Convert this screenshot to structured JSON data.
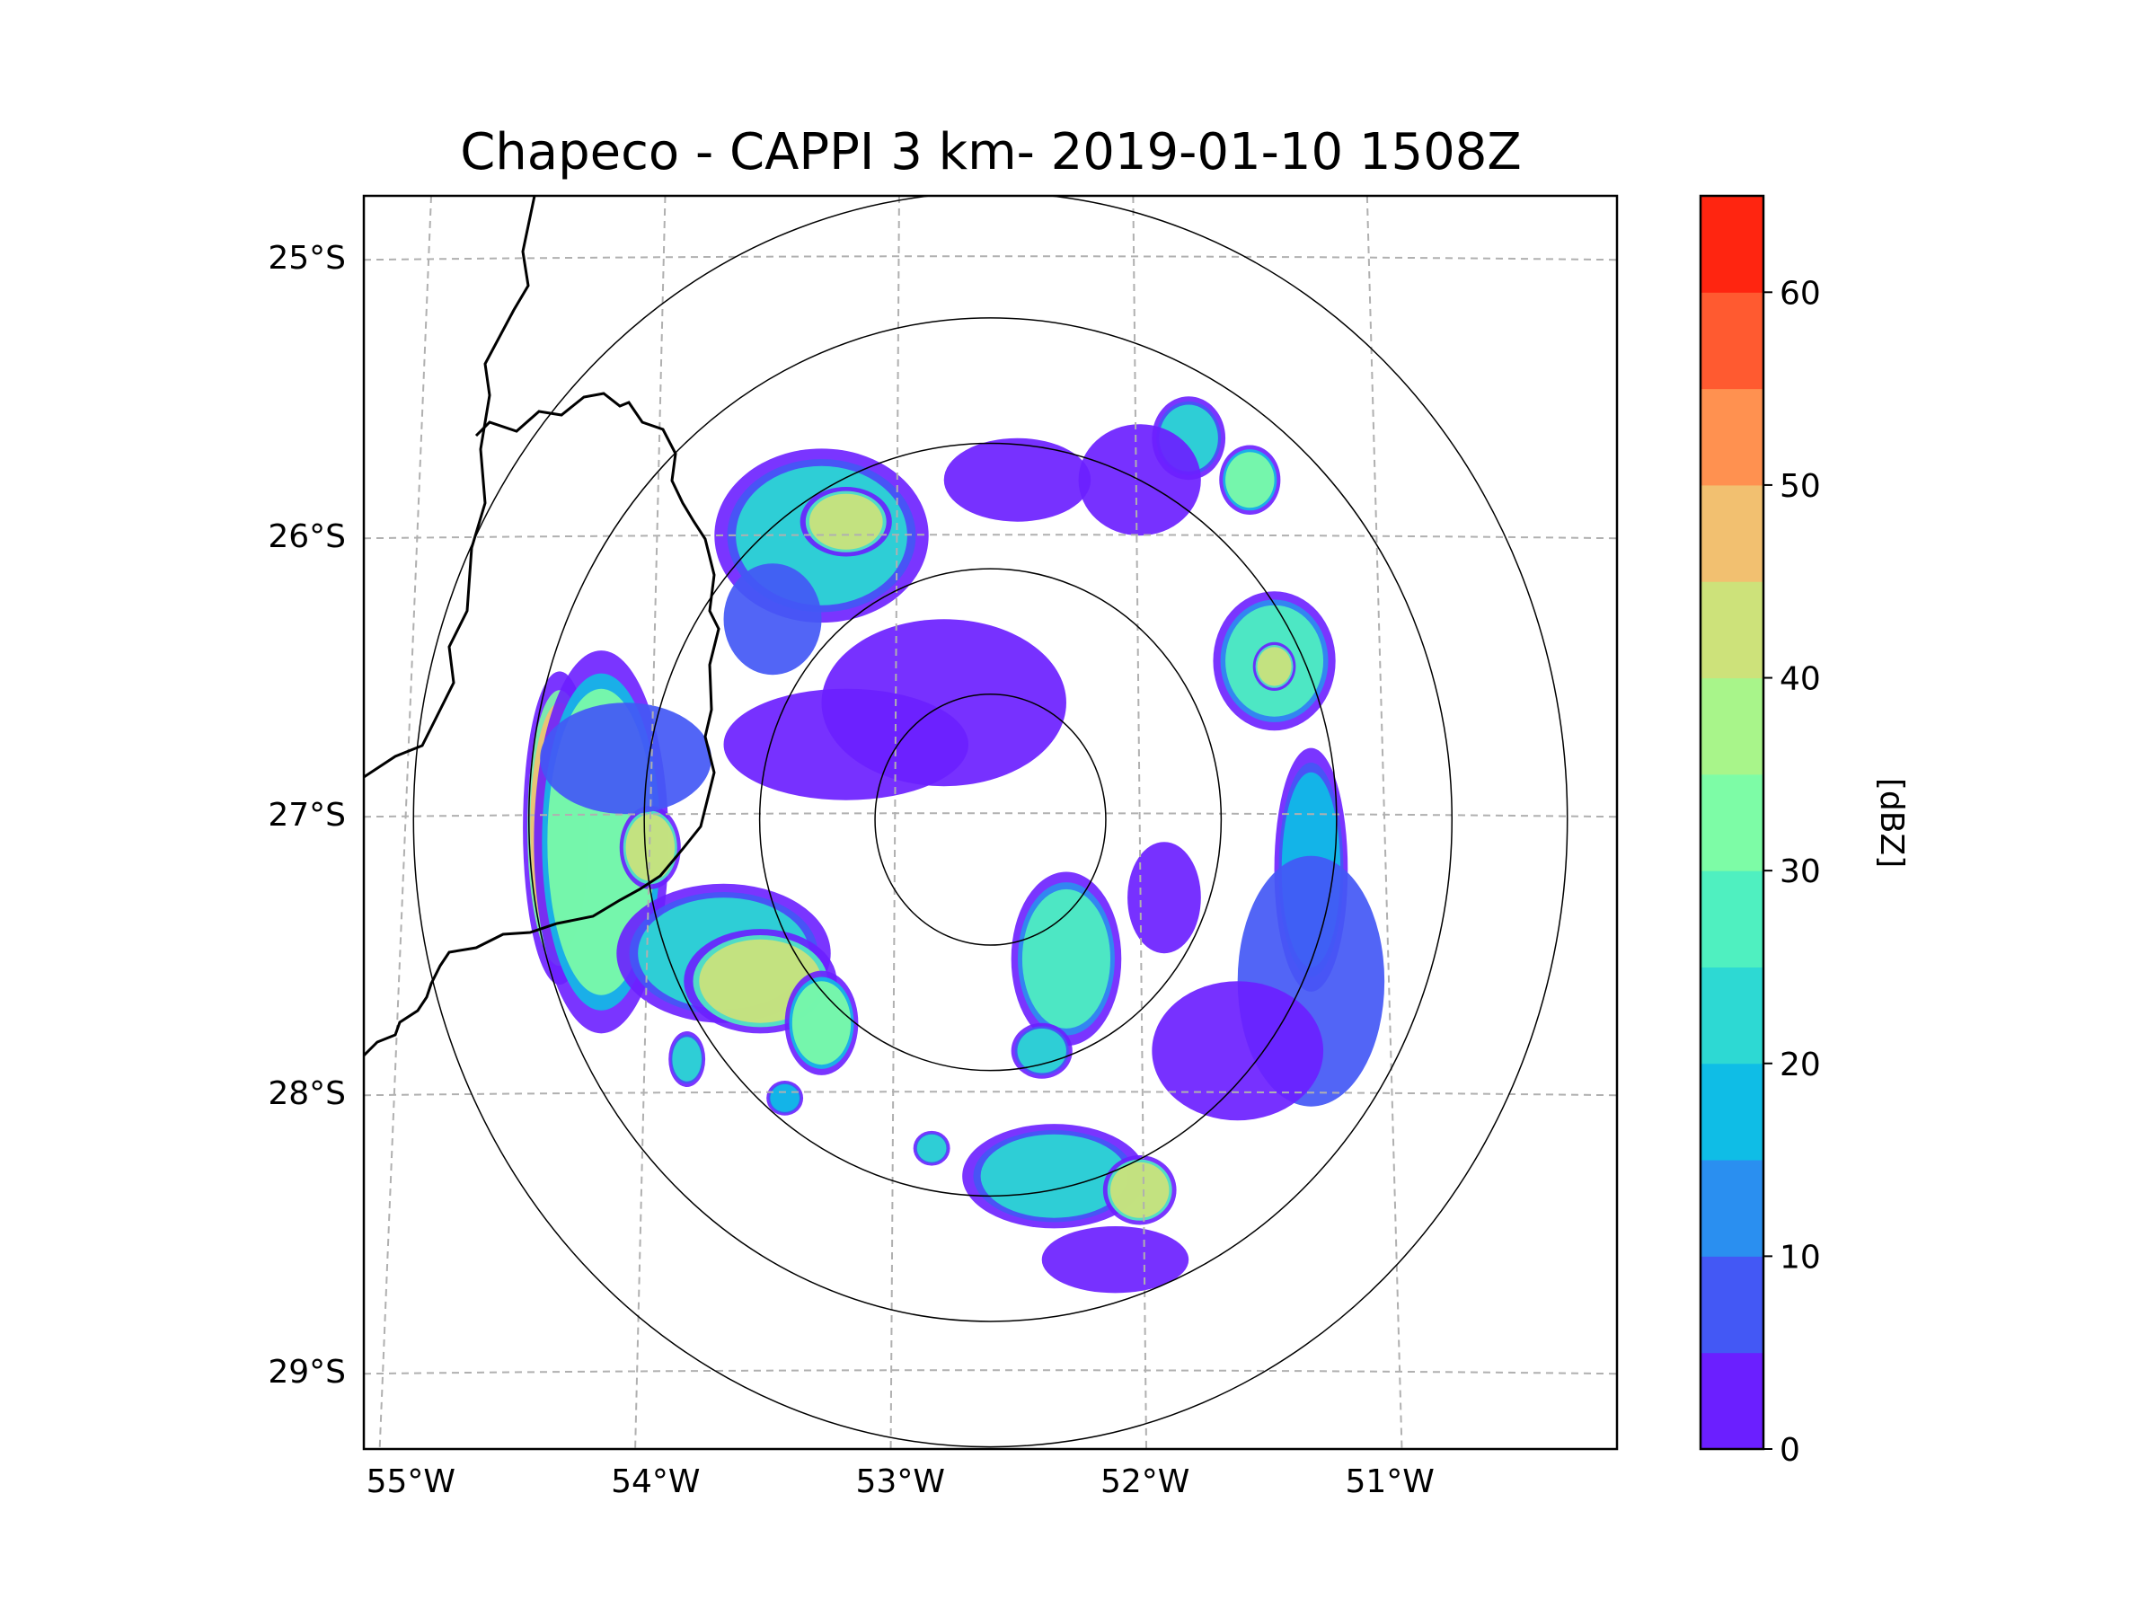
{
  "title": "Chapeco - CAPPI 3 km- 2019-01-10 1508Z",
  "map": {
    "lon_range": [
      -55.17,
      -50.05
    ],
    "lat_range": [
      -29.28,
      -24.78
    ],
    "radar_center": {
      "lon": -52.61,
      "lat": -27.02
    },
    "lat_ticks": [
      {
        "label": "25°S",
        "value": -25
      },
      {
        "label": "26°S",
        "value": -26
      },
      {
        "label": "27°S",
        "value": -27
      },
      {
        "label": "28°S",
        "value": -28
      },
      {
        "label": "29°S",
        "value": -29
      }
    ],
    "lon_ticks": [
      {
        "label": "55°W",
        "value": -55
      },
      {
        "label": "54°W",
        "value": -54
      },
      {
        "label": "53°W",
        "value": -53
      },
      {
        "label": "52°W",
        "value": -52
      },
      {
        "label": "51°W",
        "value": -51
      }
    ],
    "range_rings_km": [
      50,
      100,
      150,
      200,
      250
    ]
  },
  "colorbar": {
    "label": "[dBZ]",
    "min": 0,
    "max": 65,
    "step": 5,
    "tick_labels": [
      "0",
      "10",
      "20",
      "30",
      "40",
      "50",
      "60"
    ],
    "tick_values": [
      0,
      10,
      20,
      30,
      40,
      50,
      60
    ],
    "colors": [
      "#6b1fff",
      "#4358f5",
      "#2a8ff0",
      "#0fbde6",
      "#2dd9d3",
      "#4ff0c0",
      "#7dfca6",
      "#a8f58a",
      "#cde27a",
      "#f2c070",
      "#ff9150",
      "#ff5a30",
      "#ff2510"
    ]
  },
  "echoes": [
    {
      "lon": -54.37,
      "lat": -27.05,
      "rx": 0.12,
      "ry": 0.45,
      "dbz": 48
    },
    {
      "lon": -54.2,
      "lat": -27.1,
      "rx": 0.22,
      "ry": 0.55,
      "dbz": 30
    },
    {
      "lon": -54.0,
      "lat": -27.12,
      "rx": 0.1,
      "ry": 0.12,
      "dbz": 40
    },
    {
      "lon": -53.7,
      "lat": -27.5,
      "rx": 0.35,
      "ry": 0.2,
      "dbz": 22
    },
    {
      "lon": -53.55,
      "lat": -27.6,
      "rx": 0.25,
      "ry": 0.15,
      "dbz": 40
    },
    {
      "lon": -53.3,
      "lat": -27.75,
      "rx": 0.12,
      "ry": 0.15,
      "dbz": 30
    },
    {
      "lon": -53.3,
      "lat": -26.0,
      "rx": 0.35,
      "ry": 0.25,
      "dbz": 20
    },
    {
      "lon": -53.2,
      "lat": -25.95,
      "rx": 0.15,
      "ry": 0.1,
      "dbz": 42
    },
    {
      "lon": -53.5,
      "lat": -26.3,
      "rx": 0.2,
      "ry": 0.2,
      "dbz": 8
    },
    {
      "lon": -52.3,
      "lat": -27.52,
      "rx": 0.18,
      "ry": 0.25,
      "dbz": 28
    },
    {
      "lon": -52.35,
      "lat": -28.3,
      "rx": 0.3,
      "ry": 0.15,
      "dbz": 22
    },
    {
      "lon": -52.0,
      "lat": -28.35,
      "rx": 0.12,
      "ry": 0.1,
      "dbz": 42
    },
    {
      "lon": -51.45,
      "lat": -26.45,
      "rx": 0.2,
      "ry": 0.2,
      "dbz": 26
    },
    {
      "lon": -51.45,
      "lat": -26.47,
      "rx": 0.07,
      "ry": 0.07,
      "dbz": 44
    },
    {
      "lon": -51.8,
      "lat": -25.65,
      "rx": 0.12,
      "ry": 0.12,
      "dbz": 24
    },
    {
      "lon": -51.55,
      "lat": -25.8,
      "rx": 0.1,
      "ry": 0.1,
      "dbz": 30
    },
    {
      "lon": -51.3,
      "lat": -27.2,
      "rx": 0.12,
      "ry": 0.35,
      "dbz": 18
    },
    {
      "lon": -51.3,
      "lat": -27.6,
      "rx": 0.3,
      "ry": 0.45,
      "dbz": 6
    },
    {
      "lon": -51.6,
      "lat": -27.85,
      "rx": 0.35,
      "ry": 0.25,
      "dbz": 4
    },
    {
      "lon": -52.8,
      "lat": -26.6,
      "rx": 0.5,
      "ry": 0.3,
      "dbz": 2
    },
    {
      "lon": -53.2,
      "lat": -26.75,
      "rx": 0.5,
      "ry": 0.2,
      "dbz": 4
    },
    {
      "lon": -54.1,
      "lat": -26.8,
      "rx": 0.35,
      "ry": 0.2,
      "dbz": 6
    },
    {
      "lon": -52.4,
      "lat": -27.85,
      "rx": 0.1,
      "ry": 0.08,
      "dbz": 20
    },
    {
      "lon": -52.85,
      "lat": -28.2,
      "rx": 0.06,
      "ry": 0.05,
      "dbz": 22
    },
    {
      "lon": -53.85,
      "lat": -27.88,
      "rx": 0.06,
      "ry": 0.08,
      "dbz": 24
    },
    {
      "lon": -53.45,
      "lat": -28.02,
      "rx": 0.06,
      "ry": 0.05,
      "dbz": 18
    },
    {
      "lon": -52.0,
      "lat": -25.8,
      "rx": 0.25,
      "ry": 0.2,
      "dbz": 2
    },
    {
      "lon": -52.5,
      "lat": -25.8,
      "rx": 0.3,
      "ry": 0.15,
      "dbz": 1
    },
    {
      "lon": -52.1,
      "lat": -28.6,
      "rx": 0.3,
      "ry": 0.12,
      "dbz": 3
    },
    {
      "lon": -51.9,
      "lat": -27.3,
      "rx": 0.15,
      "ry": 0.2,
      "dbz": 4
    }
  ]
}
